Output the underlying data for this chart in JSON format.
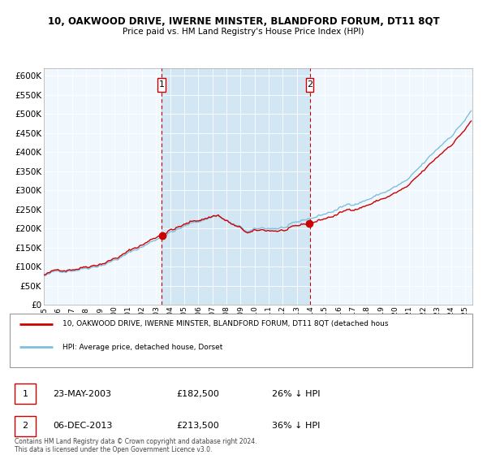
{
  "title": "10, OAKWOOD DRIVE, IWERNE MINSTER, BLANDFORD FORUM, DT11 8QT",
  "subtitle": "Price paid vs. HM Land Registry's House Price Index (HPI)",
  "legend_line1": "10, OAKWOOD DRIVE, IWERNE MINSTER, BLANDFORD FORUM, DT11 8QT (detached hous",
  "legend_line2": "HPI: Average price, detached house, Dorset",
  "transaction1_date": "23-MAY-2003",
  "transaction1_price": 182500,
  "transaction1_note": "26% ↓ HPI",
  "transaction1_x": 2003.39,
  "transaction2_date": "06-DEC-2013",
  "transaction2_price": 213500,
  "transaction2_note": "36% ↓ HPI",
  "transaction2_x": 2013.92,
  "footer": "Contains HM Land Registry data © Crown copyright and database right 2024.\nThis data is licensed under the Open Government Licence v3.0.",
  "ylim": [
    0,
    620000
  ],
  "yticks": [
    0,
    50000,
    100000,
    150000,
    200000,
    250000,
    300000,
    350000,
    400000,
    450000,
    500000,
    550000,
    600000
  ],
  "hpi_color": "#7fbfdf",
  "hpi_fill_color": "#d8eaf7",
  "price_color": "#cc0000",
  "vline_color": "#cc0000",
  "background_color": "#e8f4fc",
  "chart_bg_color": "#f0f7fd",
  "shade_color": "#c8dff0",
  "xtick_years": [
    1995,
    1996,
    1997,
    1998,
    1999,
    2000,
    2001,
    2002,
    2003,
    2004,
    2005,
    2006,
    2007,
    2008,
    2009,
    2010,
    2011,
    2012,
    2013,
    2014,
    2015,
    2016,
    2017,
    2018,
    2019,
    2020,
    2021,
    2022,
    2023,
    2024,
    2025
  ],
  "xlim_start": 1995.0,
  "xlim_end": 2025.5
}
